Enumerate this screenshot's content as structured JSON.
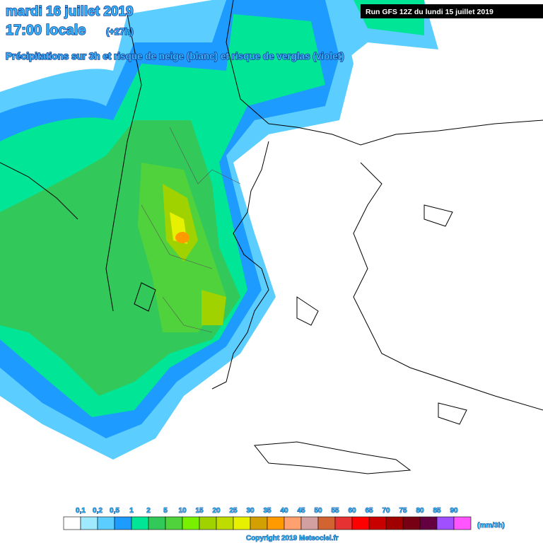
{
  "header": {
    "date": "mardi 16 juillet 2019",
    "time": "17:00 locale",
    "lead": "(+27h)",
    "subtitle": "Précipitations sur 3h et risque de neige (blanc) et risque de verglas (violet)",
    "run": "Run GFS 12Z du lundi 15 juillet 2019"
  },
  "legend": {
    "labels": [
      "0,1",
      "0,2",
      "0,5",
      "1",
      "2",
      "5",
      "10",
      "15",
      "20",
      "25",
      "30",
      "35",
      "40",
      "45",
      "50",
      "55",
      "60",
      "65",
      "70",
      "75",
      "80",
      "85",
      "90"
    ],
    "colors": [
      "#ffffff",
      "#a0eaff",
      "#5ccdff",
      "#1e9bff",
      "#00e696",
      "#32c85a",
      "#50d23c",
      "#78f000",
      "#a0d200",
      "#bedc00",
      "#e6f000",
      "#d2a000",
      "#ff9b00",
      "#ffa070",
      "#d2a0a0",
      "#d26432",
      "#e63232",
      "#ff0000",
      "#c80000",
      "#a00000",
      "#780014",
      "#640040",
      "#a050ff",
      "#ff55ff"
    ],
    "unit": "(mm/3h)"
  },
  "footer": {
    "copyright": "Copyright 2019 Meteociel.fr"
  }
}
